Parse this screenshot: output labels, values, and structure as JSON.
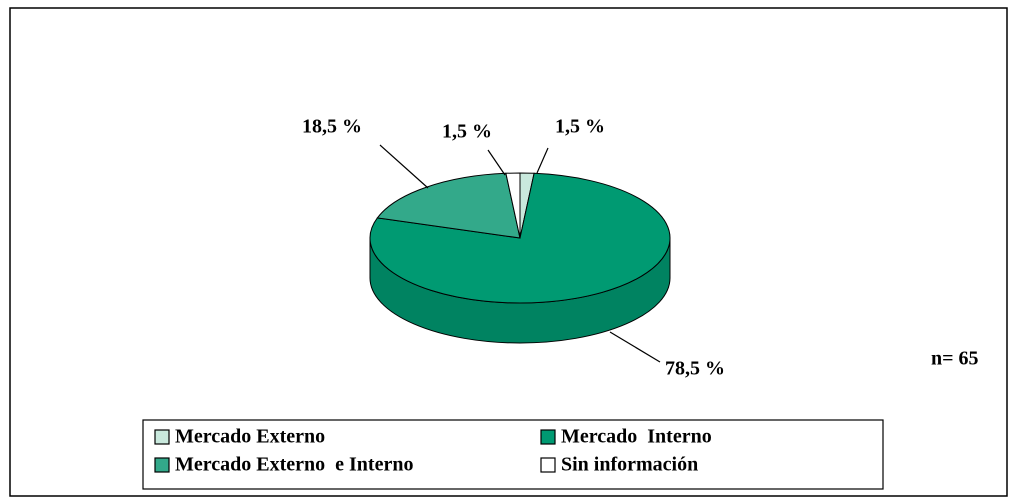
{
  "chart_data": {
    "type": "pie",
    "categories": [
      "Mercado Externo",
      "Mercado  Interno",
      "Mercado Externo  e Interno",
      "Sin información"
    ],
    "values": [
      1.5,
      78.5,
      18.5,
      1.5
    ],
    "value_labels": [
      "1,5 %",
      "78,5 %",
      "18,5 %",
      "1,5 %"
    ],
    "colors": [
      "#c9e9dd",
      "#009a72",
      "#33a98a",
      "#ffffff"
    ],
    "annotation": "n= 65",
    "legend": "bottom"
  }
}
